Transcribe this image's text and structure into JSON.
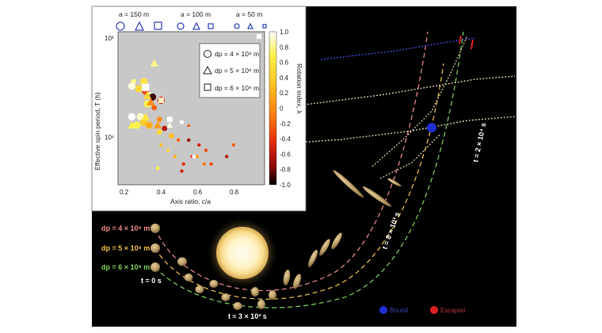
{
  "inset": {
    "header": [
      {
        "label": "a = 150 m",
        "color": "#3b4cc0"
      },
      {
        "label": "a = 100 m",
        "color": "#3b4cc0"
      },
      {
        "label": "a = 50 m",
        "color": "#3b4cc0"
      }
    ],
    "ylabel": "Effective spin period, T (h)",
    "xlabel": "Axis ratio, c/a",
    "colorbar_label": "Rotation index, λ",
    "legend": [
      "dp = 4 × 10⁸ m",
      "dp = 5 × 10⁸ m",
      "dp = 6 × 10⁸ m"
    ]
  },
  "chart_data": {
    "type": "scatter",
    "xlabel": "Axis ratio, c/a",
    "ylabel": "Effective spin period, T (h)",
    "yscale": "log",
    "xlim": [
      0.12,
      0.97
    ],
    "ylim": [
      3,
      130
    ],
    "x_ticks": [
      "0.2",
      "0.4",
      "0.6",
      "0.8"
    ],
    "y_ticks": [
      "10¹",
      "10²"
    ],
    "colorbar": {
      "label": "Rotation index, λ",
      "range": [
        -1.0,
        1.0
      ],
      "ticks": [
        "1.0",
        "0.8",
        "0.6",
        "0.4",
        "0.2",
        "0",
        "-0.2",
        "-0.4",
        "-0.6",
        "-0.8",
        "-1.0"
      ]
    },
    "series": [
      {
        "name": "dp = 4 × 10⁸ m",
        "marker": "circle",
        "points": [
          {
            "x": 0.21,
            "y": 38,
            "s": 2,
            "c": 0.8
          },
          {
            "x": 0.2,
            "y": 34,
            "s": 3,
            "c": 0.95
          },
          {
            "x": 0.24,
            "y": 32,
            "s": 3,
            "c": 0.5
          },
          {
            "x": 0.27,
            "y": 38,
            "s": 3,
            "c": 0.6
          },
          {
            "x": 0.28,
            "y": 30,
            "s": 3,
            "c": -0.3
          },
          {
            "x": 0.3,
            "y": 27,
            "s": 3,
            "c": 0.9
          },
          {
            "x": 0.32,
            "y": 26,
            "s": 3,
            "c": -0.9
          },
          {
            "x": 0.37,
            "y": 24,
            "s": 3,
            "c": -0.5
          },
          {
            "x": 0.29,
            "y": 22,
            "s": 3,
            "c": 0.7
          },
          {
            "x": 0.33,
            "y": 20,
            "s": 2,
            "c": -0.2
          },
          {
            "x": 0.25,
            "y": 16,
            "s": 3,
            "c": 0.9
          },
          {
            "x": 0.27,
            "y": 14,
            "s": 3,
            "c": 0.4
          },
          {
            "x": 0.3,
            "y": 13,
            "s": 3,
            "c": 0.2
          },
          {
            "x": 0.36,
            "y": 11,
            "s": 2,
            "c": 0.5
          },
          {
            "x": 0.39,
            "y": 12,
            "s": 2,
            "c": -0.6
          },
          {
            "x": 0.43,
            "y": 10,
            "s": 2,
            "c": 0.3
          },
          {
            "x": 0.36,
            "y": 15,
            "s": 2,
            "c": 0.0
          },
          {
            "x": 0.2,
            "y": 16,
            "s": 3,
            "c": 1.0
          },
          {
            "x": 0.23,
            "y": 13,
            "s": 3,
            "c": 0.7
          },
          {
            "x": 0.41,
            "y": 7,
            "s": 1,
            "c": 0.5
          },
          {
            "x": 0.47,
            "y": 9,
            "s": 1,
            "c": -0.2
          },
          {
            "x": 0.53,
            "y": 9,
            "s": 1,
            "c": -0.7
          },
          {
            "x": 0.59,
            "y": 8,
            "s": 1,
            "c": -0.5
          },
          {
            "x": 0.63,
            "y": 7,
            "s": 1,
            "c": -0.3
          },
          {
            "x": 0.55,
            "y": 6,
            "s": 1,
            "c": -0.4
          },
          {
            "x": 0.62,
            "y": 5,
            "s": 1,
            "c": -0.1
          },
          {
            "x": 0.75,
            "y": 6,
            "s": 1,
            "c": -0.6
          },
          {
            "x": 0.79,
            "y": 8,
            "s": 1,
            "c": -0.2
          },
          {
            "x": 0.5,
            "y": 5,
            "s": 1,
            "c": -0.4
          },
          {
            "x": 0.58,
            "y": 6,
            "s": 1,
            "c": 0.1
          },
          {
            "x": 0.66,
            "y": 5,
            "s": 1,
            "c": -0.3
          },
          {
            "x": 0.49,
            "y": 4.2,
            "s": 1,
            "c": -0.5
          },
          {
            "x": 0.37,
            "y": 8,
            "s": 1,
            "c": 0.3
          },
          {
            "x": 0.45,
            "y": 6,
            "s": 1,
            "c": 0.2
          },
          {
            "x": 0.35,
            "y": 4.5,
            "s": 1,
            "c": 0.7
          }
        ]
      },
      {
        "name": "dp = 5 × 10⁸ m",
        "marker": "triangle",
        "points": [
          {
            "x": 0.33,
            "y": 60,
            "s": 3,
            "c": 0.8
          },
          {
            "x": 0.29,
            "y": 27,
            "s": 3,
            "c": 0.5
          },
          {
            "x": 0.31,
            "y": 23,
            "s": 3,
            "c": 0.0
          },
          {
            "x": 0.28,
            "y": 16,
            "s": 3,
            "c": 0.6
          },
          {
            "x": 0.35,
            "y": 13,
            "s": 3,
            "c": 0.1
          },
          {
            "x": 0.42,
            "y": 13,
            "s": 2,
            "c": 0.95
          },
          {
            "x": 0.53,
            "y": 13,
            "s": 1,
            "c": -0.3
          },
          {
            "x": 0.2,
            "y": 13,
            "s": 3,
            "c": 0.7
          }
        ]
      },
      {
        "name": "dp = 6 × 10⁸ m",
        "marker": "square",
        "points": [
          {
            "x": 0.28,
            "y": 33,
            "s": 3,
            "c": 1.0
          },
          {
            "x": 0.42,
            "y": 15,
            "s": 2,
            "c": 1.0
          },
          {
            "x": 0.37,
            "y": 24,
            "s": 2,
            "c": 0.9
          },
          {
            "x": 0.49,
            "y": 14,
            "s": 1,
            "c": 1.0
          },
          {
            "x": 0.56,
            "y": 6,
            "s": 1,
            "c": 1.0
          }
        ]
      }
    ]
  },
  "main": {
    "left_labels": [
      "dp = 4 × 10⁸ m",
      "dp = 5 × 10⁸ m",
      "dp = 6 × 10⁸ m"
    ],
    "label_colors": [
      "#f08c8c",
      "#f2c14a",
      "#7fd45a"
    ],
    "time_labels": [
      "t = 0 s",
      "t ≈ 3 × 10³ s",
      "t = 8 × 10³ s",
      "t = 2 × 10⁴ s"
    ],
    "legend": [
      {
        "label": "Bound",
        "color": "#1f2fd8"
      },
      {
        "label": "Escaped",
        "color": "#e02020"
      }
    ]
  }
}
